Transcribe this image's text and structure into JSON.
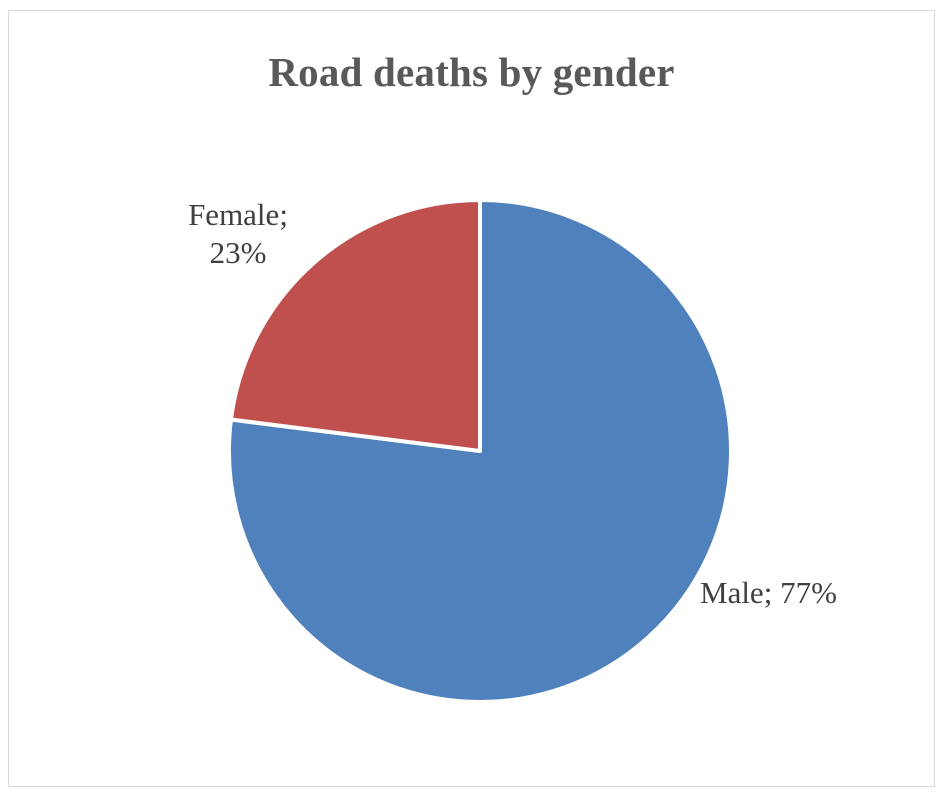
{
  "chart_data": {
    "type": "pie",
    "title": "Road deaths by gender",
    "slices": [
      {
        "name": "Male",
        "value": 77,
        "label": "77%",
        "color": "#4f81bd"
      },
      {
        "name": "Female",
        "value": 23,
        "label": "23%",
        "color": "#c0504d"
      }
    ],
    "start_angle_deg": 0,
    "direction": "clockwise",
    "data_labels": "category; percentage",
    "legend": "none",
    "border_color": "#d9d9d9"
  }
}
